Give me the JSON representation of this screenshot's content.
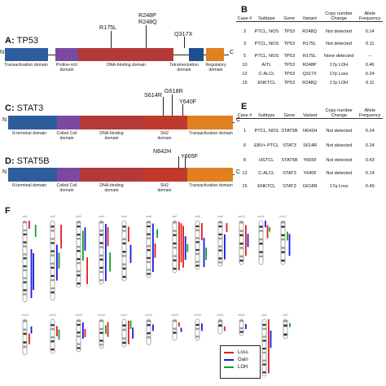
{
  "panels": {
    "A": {
      "letter": "A:",
      "protein": "TP53"
    },
    "B": {
      "letter": "B"
    },
    "C": {
      "letter": "C:",
      "protein": "STAT3"
    },
    "D": {
      "letter": "D:",
      "protein": "STAT5B"
    },
    "E": {
      "letter": "E"
    },
    "F": {
      "letter": "F"
    }
  },
  "termini": {
    "n": "N",
    "c": "C"
  },
  "tp53": {
    "domains": [
      {
        "name": "transactivation",
        "label": "Transactivation domain",
        "color": "#2e5d9e"
      },
      {
        "name": "proline-rich",
        "label": "Proline-rich domain",
        "color": "#7b4aa0"
      },
      {
        "name": "dna-binding",
        "label": "DNA-binding domain",
        "color": "#b43a3a"
      },
      {
        "name": "tetramerization",
        "label": "Tetramerization domain",
        "color": "#1f4f8f"
      },
      {
        "name": "regulatory",
        "label": "Regulatory domain",
        "color": "#e0801f"
      }
    ],
    "mutations": [
      "R175L",
      "R248P",
      "R248Q",
      "Q317X"
    ]
  },
  "stat3": {
    "domains": [
      {
        "name": "n-terminal",
        "label": "N terminal domain",
        "color": "#2e5d9e"
      },
      {
        "name": "coiled-coil",
        "label": "Coiled Coil domain",
        "color": "#7b4aa0"
      },
      {
        "name": "dna-binding",
        "label": "DNA-binding domain",
        "color": "#b43a3a"
      },
      {
        "name": "sh2",
        "label": "SH2 domain",
        "color": "#c0392b"
      },
      {
        "name": "transactivation",
        "label": "Transactivation domain",
        "color": "#e0801f"
      }
    ],
    "mutations": [
      "S614R",
      "G618R",
      "Y640F"
    ]
  },
  "stat5b": {
    "domains": [
      {
        "name": "n-terminal",
        "label": "N terminal domain",
        "color": "#2e5d9e"
      },
      {
        "name": "coiled-coil",
        "label": "Coiled Coil domain",
        "color": "#7b4aa0"
      },
      {
        "name": "dna-binding",
        "label": "DNA-binding domain",
        "color": "#b43a3a"
      },
      {
        "name": "sh2",
        "label": "SH2 domain",
        "color": "#c0392b"
      },
      {
        "name": "transactivation",
        "label": "Transactivation domain",
        "color": "#e0801f"
      }
    ],
    "mutations": [
      "N642H",
      "Y665F"
    ]
  },
  "tableB": {
    "headers": [
      "Case #",
      "Subtype",
      "Gene",
      "Variant",
      "Copy number Change",
      "Allele Frequency"
    ],
    "rows": [
      [
        "2",
        "PTCL, NOS",
        "TP53",
        "R248Q",
        "Not detected",
        "0.14"
      ],
      [
        "3",
        "PTCL, NOS",
        "TP53",
        "R175L",
        "Not detected",
        "0.11"
      ],
      [
        "5",
        "PTCL, NOS",
        "TP53",
        "R175L",
        "None detected",
        "--"
      ],
      [
        "10",
        "AITL",
        "TP53",
        "R248P",
        "17p LOH",
        "0.46"
      ],
      [
        "12",
        "C-ALCL",
        "TP53",
        "Q317X",
        "17p Loss",
        "0.24"
      ],
      [
        "15",
        "ENKTCL",
        "TP53",
        "R248Q",
        "17p LOH",
        "0.11"
      ]
    ]
  },
  "tableE": {
    "headers": [
      "Case #",
      "Subtype",
      "Gene",
      "Variant",
      "Copy number Change",
      "Allele Frequency"
    ],
    "rows": [
      [
        "1",
        "PTCL, NOS",
        "STAT5B",
        "N642H",
        "Not detected",
        "0.24"
      ],
      [
        "6",
        "EBV+ PTCL",
        "STAT3",
        "S614R",
        "Not detected",
        "0.24"
      ],
      [
        "8",
        "HSTCL",
        "STAT5B",
        "Y665F",
        "Not detected",
        "0.43"
      ],
      [
        "12",
        "C-ALCL",
        "STAT3",
        "Y640F",
        "Not detected",
        "0.14"
      ],
      [
        "15",
        "ENKTCL",
        "STAT3",
        "G618R",
        "17q Loss",
        "0.49"
      ]
    ]
  },
  "legend": [
    {
      "label": "Loss",
      "color": "#e02020"
    },
    {
      "label": "Gain",
      "color": "#1a1adf"
    },
    {
      "label": "LOH",
      "color": "#16a02a"
    }
  ],
  "chromosomes": {
    "row1": [
      "chr1",
      "chr2",
      "chr3",
      "chr4",
      "chr5",
      "chr6",
      "chr7",
      "chr8",
      "chr9",
      "chr10",
      "chr11",
      "chr12"
    ],
    "row2": [
      "chr13",
      "chr14",
      "chr15",
      "chr16",
      "chr17",
      "chr18",
      "chr19",
      "chr20",
      "chr21",
      "chr22",
      "chrX",
      "chrY"
    ],
    "events": [
      {
        "chr": "chr1",
        "type": "Loss",
        "lane": 0,
        "start": 0.0,
        "end": 0.1
      },
      {
        "chr": "chr1",
        "type": "Gain",
        "lane": 1,
        "start": 0.35,
        "end": 0.95
      },
      {
        "chr": "chr1",
        "type": "Gain",
        "lane": 2,
        "start": 0.4,
        "end": 0.85
      },
      {
        "chr": "chr1",
        "type": "LOH",
        "lane": 3,
        "start": 0.05,
        "end": 0.2
      },
      {
        "chr": "chr2",
        "type": "Gain",
        "lane": 0,
        "start": 0.3,
        "end": 0.75
      },
      {
        "chr": "chr2",
        "type": "LOH",
        "lane": 1,
        "start": 0.4,
        "end": 0.6
      },
      {
        "chr": "chr2",
        "type": "Loss",
        "lane": 2,
        "start": 0.05,
        "end": 0.35
      },
      {
        "chr": "chr3",
        "type": "LOH",
        "lane": 0,
        "start": 0.15,
        "end": 0.6
      },
      {
        "chr": "chr3",
        "type": "Gain",
        "lane": 1,
        "start": 0.1,
        "end": 0.45
      },
      {
        "chr": "chr3",
        "type": "Loss",
        "lane": 2,
        "start": 0.55,
        "end": 0.95
      },
      {
        "chr": "chr4",
        "type": "Gain",
        "lane": 0,
        "start": 0.05,
        "end": 0.95
      },
      {
        "chr": "chr4",
        "type": "Loss",
        "lane": 1,
        "start": 0.1,
        "end": 0.4
      },
      {
        "chr": "chr4",
        "type": "LOH",
        "lane": 2,
        "start": 0.5,
        "end": 0.8
      },
      {
        "chr": "chr5",
        "type": "Loss",
        "lane": 0,
        "start": 0.1,
        "end": 0.35
      },
      {
        "chr": "chr5",
        "type": "Gain",
        "lane": 1,
        "start": 0.4,
        "end": 0.7
      },
      {
        "chr": "chr6",
        "type": "Gain",
        "lane": 0,
        "start": 0.05,
        "end": 0.9
      },
      {
        "chr": "chr6",
        "type": "Loss",
        "lane": 1,
        "start": 0.4,
        "end": 0.65
      },
      {
        "chr": "chr6",
        "type": "LOH",
        "lane": 2,
        "start": 0.15,
        "end": 0.3
      },
      {
        "chr": "chr7",
        "type": "Loss",
        "lane": 0,
        "start": 0.02,
        "end": 0.95
      },
      {
        "chr": "chr7",
        "type": "Loss",
        "lane": 1,
        "start": 0.05,
        "end": 0.8
      },
      {
        "chr": "chr7",
        "type": "Loss",
        "lane": 2,
        "start": 0.1,
        "end": 0.9
      },
      {
        "chr": "chr7",
        "type": "Gain",
        "lane": 3,
        "start": 0.3,
        "end": 0.75
      },
      {
        "chr": "chr7",
        "type": "LOH",
        "lane": 4,
        "start": 0.45,
        "end": 0.6
      },
      {
        "chr": "chr8",
        "type": "Loss",
        "lane": 0,
        "start": 0.05,
        "end": 0.4
      },
      {
        "chr": "chr8",
        "type": "Gain",
        "lane": 1,
        "start": 0.35,
        "end": 0.95
      },
      {
        "chr": "chr8",
        "type": "LOH",
        "lane": 2,
        "start": 0.55,
        "end": 0.8
      },
      {
        "chr": "chr9",
        "type": "Gain",
        "lane": 0,
        "start": 0.3,
        "end": 0.85
      },
      {
        "chr": "chr9",
        "type": "Loss",
        "lane": 1,
        "start": 0.05,
        "end": 0.25
      },
      {
        "chr": "chr10",
        "type": "Loss",
        "lane": 0,
        "start": 0.1,
        "end": 0.8
      },
      {
        "chr": "chr10",
        "type": "Gain",
        "lane": 1,
        "start": 0.3,
        "end": 0.6
      },
      {
        "chr": "chr11",
        "type": "Gain",
        "lane": 0,
        "start": 0.0,
        "end": 0.15
      },
      {
        "chr": "chr11",
        "type": "Loss",
        "lane": 1,
        "start": 0.1,
        "end": 0.4
      },
      {
        "chr": "chr11",
        "type": "LOH",
        "lane": 2,
        "start": 0.15,
        "end": 0.25
      },
      {
        "chr": "chr12",
        "type": "LOH",
        "lane": 0,
        "start": 0.25,
        "end": 0.45
      },
      {
        "chr": "chr12",
        "type": "Gain",
        "lane": 1,
        "start": 0.3,
        "end": 0.8
      },
      {
        "chr": "chr13",
        "type": "Loss",
        "lane": 0,
        "start": 0.4,
        "end": 0.7
      },
      {
        "chr": "chr13",
        "type": "Gain",
        "lane": 1,
        "start": 0.2,
        "end": 0.4
      },
      {
        "chr": "chr14",
        "type": "Loss",
        "lane": 0,
        "start": 0.2,
        "end": 0.5
      },
      {
        "chr": "chr14",
        "type": "LOH",
        "lane": 1,
        "start": 0.3,
        "end": 0.6
      },
      {
        "chr": "chr15",
        "type": "Gain",
        "lane": 0,
        "start": 0.1,
        "end": 0.6
      },
      {
        "chr": "chr15",
        "type": "Loss",
        "lane": 1,
        "start": 0.3,
        "end": 0.55
      },
      {
        "chr": "chr16",
        "type": "LOH",
        "lane": 0,
        "start": 0.2,
        "end": 0.5
      },
      {
        "chr": "chr16",
        "type": "Loss",
        "lane": 1,
        "start": 0.1,
        "end": 0.6
      },
      {
        "chr": "chr17",
        "type": "Loss",
        "lane": 0,
        "start": 0.05,
        "end": 0.9
      },
      {
        "chr": "chr17",
        "type": "LOH",
        "lane": 1,
        "start": 0.05,
        "end": 0.35
      },
      {
        "chr": "chr17",
        "type": "Gain",
        "lane": 2,
        "start": 0.3,
        "end": 0.7
      },
      {
        "chr": "chr18",
        "type": "Gain",
        "lane": 0,
        "start": 0.2,
        "end": 0.45
      },
      {
        "chr": "chr19",
        "type": "Loss",
        "lane": 0,
        "start": 0.15,
        "end": 0.35
      },
      {
        "chr": "chr19",
        "type": "Gain",
        "lane": 1,
        "start": 0.4,
        "end": 0.6
      },
      {
        "chr": "chr20",
        "type": "Gain",
        "lane": 0,
        "start": 0.2,
        "end": 0.55
      },
      {
        "chr": "chr21",
        "type": "Loss",
        "lane": 0,
        "start": 0.5,
        "end": 0.8
      },
      {
        "chr": "chr22",
        "type": "Gain",
        "lane": 0,
        "start": 0.3,
        "end": 0.6
      },
      {
        "chr": "chrX",
        "type": "Loss",
        "lane": 0,
        "start": 0.0,
        "end": 0.95
      },
      {
        "chr": "chrX",
        "type": "Gain",
        "lane": 1,
        "start": 0.2,
        "end": 0.5
      },
      {
        "chr": "chrY",
        "type": "LOH",
        "lane": 0,
        "start": 0.2,
        "end": 0.4
      }
    ]
  }
}
